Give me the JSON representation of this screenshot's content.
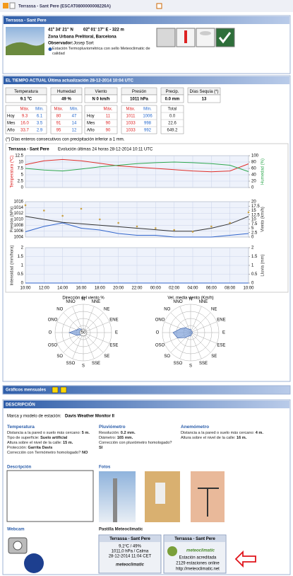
{
  "header": {
    "title": "Terrassa - Sant Pere (ESCAT0800000008226A)"
  },
  "station": {
    "title": "Terrassa - Sant Pere",
    "lat": "41º 34' 21'' N",
    "lon_alt": "02º 01' 17'' E  -  322 m",
    "zone": "Zona Urbana Prelitoral, Barcelona",
    "observer_label": "Observador:",
    "observer": "Josep Sort",
    "seal": "Estación Termopluviométrica con sello Meteoclimatic de calidad"
  },
  "current": {
    "title": "EL TIEMPO ACTUAL Última actualización 28-12-2014 10:04 UTC",
    "headers": [
      "Temperatura",
      "Humedad",
      "Viento",
      "Presión",
      "Precip.",
      "Días Sequía (*)"
    ],
    "values": [
      "9.1 ºC",
      "49 %",
      "N  0 km/h",
      "1011 hPa",
      "0.0 mm",
      "13"
    ],
    "max": "Máx.",
    "min": "Mín.",
    "total": "Total",
    "rows": [
      {
        "label": "Hoy",
        "cells": [
          "9.3",
          "6.1",
          "80",
          "47",
          "11",
          "1011",
          "1006",
          "0.0"
        ]
      },
      {
        "label": "Mes",
        "cells": [
          "16.0",
          "3.5",
          "91",
          "14",
          "90",
          "1033",
          "998",
          "22.6"
        ]
      },
      {
        "label": "Año",
        "cells": [
          "33.7",
          "2.9",
          "95",
          "12",
          "90",
          "1033",
          "992",
          "649.2"
        ]
      }
    ],
    "note": "(*) Días enteros consecutivos con precipitación inferior a 1 mm."
  },
  "chart_data": [
    {
      "type": "line",
      "title": "Terrassa - Sant Pere",
      "subtitle": "Evolución últimas 24 horas 28-12-2014 10:11 UTC",
      "x": [
        0,
        2,
        4,
        6,
        8,
        10,
        12,
        14,
        16,
        18,
        20,
        22,
        24
      ],
      "xlim": [
        0,
        24
      ],
      "xticks": [
        {
          "value": 0,
          "label": "10:00"
        },
        {
          "value": 2,
          "label": "12:00"
        },
        {
          "value": 4,
          "label": "14:00"
        },
        {
          "value": 6,
          "label": "16:00"
        },
        {
          "value": 8,
          "label": "18:00"
        },
        {
          "value": 10,
          "label": "20:00"
        },
        {
          "value": 12,
          "label": "22:00"
        },
        {
          "value": 14,
          "label": "00:00"
        },
        {
          "value": 16,
          "label": "02:00"
        },
        {
          "value": 18,
          "label": "04:00"
        },
        {
          "value": 20,
          "label": "06:00"
        },
        {
          "value": 22,
          "label": "08:00"
        },
        {
          "value": 24,
          "label": "10:00"
        }
      ],
      "panels": [
        {
          "ylabel": "Temperatura (ºC)",
          "y2label": "Humedad (%)",
          "ylim": [
            0,
            12.5
          ],
          "yticks": [
            0,
            2.5,
            5,
            7.5,
            10,
            12.5
          ],
          "y2lim": [
            0,
            100
          ],
          "y2ticks": [
            0,
            20,
            40,
            60,
            80,
            100
          ],
          "series": [
            {
              "color": "#e0302a",
              "values": [
                9,
                10.5,
                11,
                10.5,
                9.5,
                8.5,
                8,
                7.5,
                7,
                6.5,
                6.2,
                6.5,
                9.3
              ]
            },
            {
              "color": "#2fa84f",
              "axis": "y2",
              "values": [
                60,
                55,
                52,
                58,
                65,
                70,
                75,
                78,
                80,
                78,
                75,
                70,
                50
              ]
            }
          ]
        },
        {
          "ylabel": "Presión (hPa)",
          "y2label": "Viento (km/h)",
          "ylim": [
            1004,
            1016
          ],
          "yticks": [
            1004,
            1006,
            1008,
            1010,
            1012,
            1014,
            1016
          ],
          "y2lim": [
            0,
            20
          ],
          "y2ticks": [
            0,
            2.5,
            5,
            7.5,
            10,
            12.5,
            15,
            17.5,
            20
          ],
          "series": [
            {
              "color": "#333333",
              "values": [
                1011,
                1010,
                1009,
                1008.5,
                1008,
                1007.5,
                1007,
                1006.5,
                1006,
                1006,
                1007,
                1008.5,
                1011
              ]
            },
            {
              "color": "#3366cc",
              "axis": "y2",
              "values": [
                3,
                6,
                8,
                5,
                4,
                2,
                1,
                1,
                0,
                0,
                0,
                1,
                2
              ]
            },
            {
              "color": "#c8a040",
              "axis": "y2",
              "style": "dots",
              "values": [
                18,
                15,
                12,
                16,
                10,
                8,
                6,
                5,
                4,
                3,
                6,
                8,
                14
              ]
            }
          ]
        },
        {
          "ylabel": "Intensidad (mm/hora)",
          "y2label": "Lluvia (mm)",
          "ylim": [
            0,
            2
          ],
          "yticks": [
            0,
            0.5,
            1,
            1.5,
            2
          ],
          "y2lim": [
            0,
            2
          ],
          "y2ticks": [
            0,
            0.5,
            1,
            1.5,
            2
          ],
          "series": [
            {
              "color": "#3366cc",
              "values": [
                0,
                0,
                0,
                0,
                0,
                0,
                0,
                0,
                0,
                0,
                0,
                0,
                0
              ]
            }
          ]
        }
      ]
    },
    {
      "type": "rose",
      "title": "Dirección del viento %",
      "categories": [
        "N",
        "NNE",
        "NE",
        "ENE",
        "E",
        "ESE",
        "SE",
        "SSE",
        "S",
        "SSO",
        "SO",
        "OSO",
        "O",
        "ONO",
        "NO",
        "NNO"
      ],
      "values": [
        5,
        2,
        2,
        1,
        2,
        1,
        1,
        1,
        2,
        3,
        5,
        10,
        20,
        10,
        8,
        5
      ],
      "rlim": [
        0,
        40
      ],
      "rticks": [
        10,
        20,
        30,
        40
      ],
      "color": "#7d9fd8",
      "center_label": "50"
    },
    {
      "type": "rose",
      "title": "Vel. media viento (Km/h)",
      "categories": [
        "N",
        "NNE",
        "NE",
        "ENE",
        "E",
        "ESE",
        "SE",
        "SSE",
        "S",
        "SSO",
        "SO",
        "OSO",
        "O",
        "ONO",
        "NO",
        "NNO"
      ],
      "values": [
        1,
        0.5,
        0.5,
        0.5,
        0.5,
        0.5,
        0.5,
        0.5,
        1,
        1,
        2,
        4,
        5,
        3,
        2,
        1
      ],
      "rlim": [
        0,
        8
      ],
      "rticks": [
        2,
        4,
        6,
        8
      ],
      "color": "#7d9fd8"
    }
  ],
  "monthly": {
    "title": "Gráficos mensuales"
  },
  "description": {
    "title": "DESCRIPCIÓN",
    "model_label": "Marca y modelo de estación:",
    "model": "Davis Weather Monitor II",
    "columns": [
      {
        "title": "Temperatura",
        "items": [
          {
            "label": "Distancia a la pared o suelo más cercano:",
            "value": "5 m."
          },
          {
            "label": "Tipo de superficie:",
            "value": "Suelo artificial"
          },
          {
            "label": "Altura sobre el nivel de la calle:",
            "value": "15 m."
          },
          {
            "label": "Protección:",
            "value": "Garrita Davis"
          },
          {
            "label": "Corrección con Termómetro homologado?",
            "value": "NO"
          }
        ]
      },
      {
        "title": "Pluviómetro",
        "items": [
          {
            "label": "Resolución:",
            "value": "0.2 mm."
          },
          {
            "label": "Diámetro:",
            "value": "165 mm."
          },
          {
            "label": "Corrección con pluviómetro homologado?",
            "value": "SI"
          }
        ]
      },
      {
        "title": "Anemómetro",
        "items": [
          {
            "label": "Distancia a la pared o suelo más cercano:",
            "value": "4 m."
          },
          {
            "label": "Altura sobre el nivel de la calle:",
            "value": "16 m."
          }
        ]
      }
    ],
    "desc_label": "Descripción",
    "photos_label": "Fotos",
    "webcam_label": "Webcam",
    "badge_label": "Pastilla Meteoclimatic"
  },
  "badges": [
    {
      "title": "Terrassa - Sant Pere",
      "lines": [
        "9,1ºC / 49%",
        "1011,0 hPa / Calma",
        "28-12-2014 11:04 CET"
      ],
      "brand": "meteoclimatic"
    },
    {
      "title": "Terrassa - Sant Pere",
      "brand": "meteoclimatic",
      "lines": [
        "Estación acreditada",
        "2129 estaciones online",
        "http://meteoclimatic.net"
      ]
    }
  ]
}
